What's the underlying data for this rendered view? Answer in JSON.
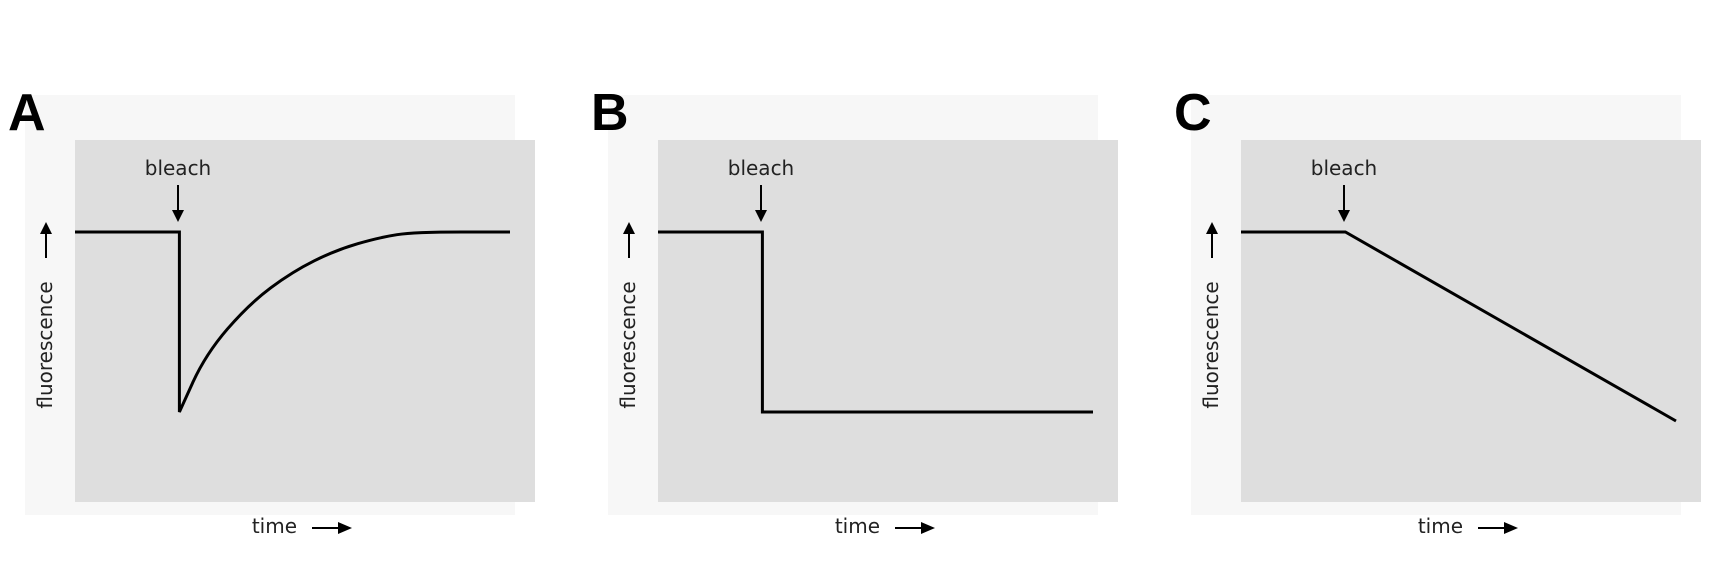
{
  "chart_data": [
    {
      "panel_label": "A",
      "type": "line",
      "xlabel": "time",
      "ylabel": "fluorescence",
      "annotation": "bleach",
      "x": [
        0,
        0.24,
        0.24,
        0.3,
        0.4,
        0.5,
        0.6,
        0.7,
        0.78,
        1.0
      ],
      "y": [
        1.0,
        1.0,
        0.0,
        0.32,
        0.6,
        0.78,
        0.9,
        0.97,
        1.0,
        1.0
      ]
    },
    {
      "panel_label": "B",
      "type": "line",
      "xlabel": "time",
      "ylabel": "fluorescence",
      "annotation": "bleach",
      "x": [
        0,
        0.24,
        0.24,
        1.0
      ],
      "y": [
        1.0,
        1.0,
        0.0,
        0.0
      ]
    },
    {
      "panel_label": "C",
      "type": "line",
      "xlabel": "time",
      "ylabel": "fluorescence",
      "annotation": "bleach",
      "x": [
        0,
        0.24,
        1.0
      ],
      "y": [
        1.0,
        1.0,
        -0.05
      ]
    }
  ]
}
